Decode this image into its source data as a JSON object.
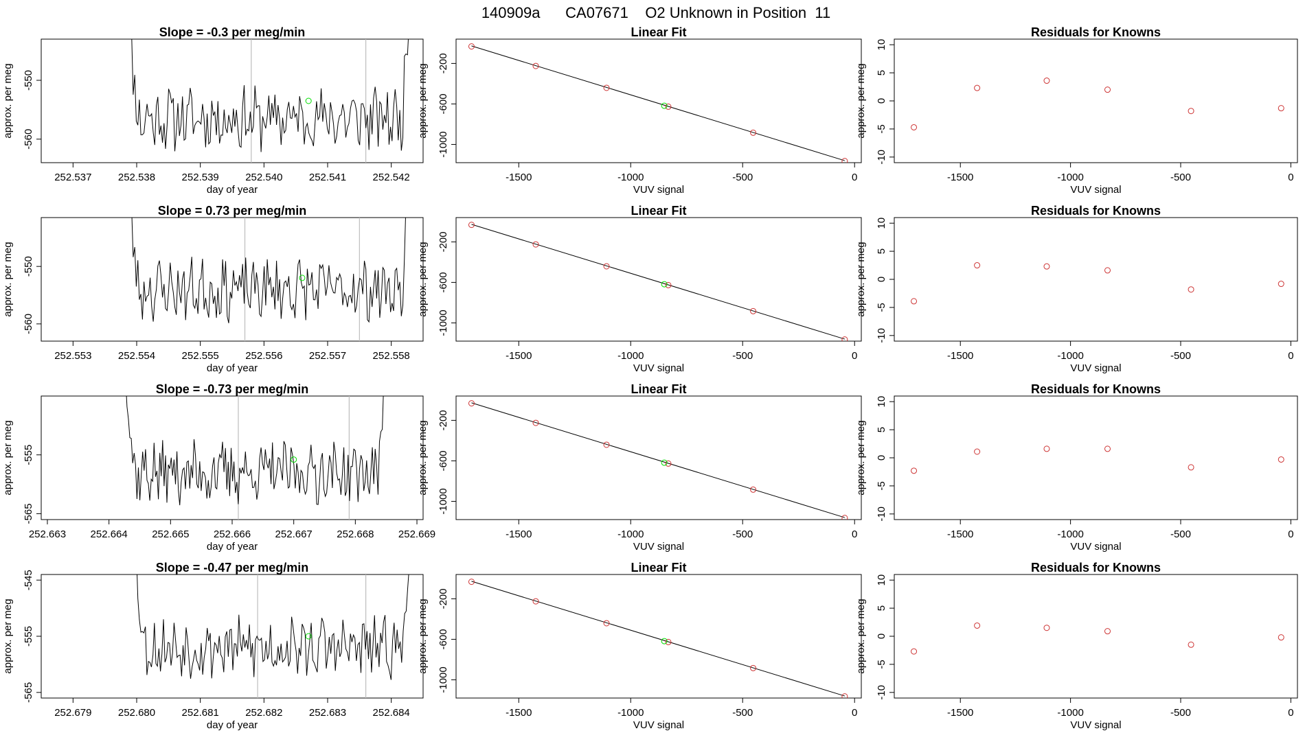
{
  "page_title": "140909a      CA07671    O2 Unknown in Position  11",
  "colors": {
    "trace": "#000000",
    "known_point": "#cd3333",
    "unknown_point": "#00dd00",
    "guide_line": "#bdbdbd",
    "axis": "#000000"
  },
  "chart_data": [
    {
      "type": "line",
      "panel": "time-series-1",
      "title": "Slope =  -0.3  per meg/min",
      "xlabel": "day of year",
      "ylabel": "approx. per meg",
      "xlim": [
        252.5365,
        252.5425
      ],
      "ylim": [
        -564,
        -543
      ],
      "xticks": [
        "252.537",
        "252.538",
        "252.539",
        "252.540",
        "252.541",
        "252.542"
      ],
      "yticks": [
        "-550",
        "-560"
      ],
      "xstart": 252.5378,
      "xend": 252.5424,
      "baseline": -556.5,
      "seed": 11,
      "vlines": [
        252.5398,
        252.5416
      ],
      "unknown_point": {
        "x": 252.5407,
        "y": -553.5
      }
    },
    {
      "type": "scatter",
      "panel": "linear-fit-1",
      "title": "Linear Fit",
      "xlabel": "VUV signal",
      "ylabel": "approx. per meg",
      "xlim": [
        -1780,
        30
      ],
      "ylim": [
        -1180,
        40
      ],
      "xticks": [
        "-1500",
        "-1000",
        "-500",
        "0"
      ],
      "yticks": [
        "-200",
        "-600",
        "-1000"
      ],
      "known_points": [
        {
          "x": -1711,
          "y": -32
        },
        {
          "x": -1424,
          "y": -225
        },
        {
          "x": -1108,
          "y": -441
        },
        {
          "x": -832,
          "y": -627
        },
        {
          "x": -453,
          "y": -884
        },
        {
          "x": -44,
          "y": -1164
        }
      ],
      "unknown_point": {
        "x": -850,
        "y": -618
      },
      "fit_line": [
        {
          "x": -1711,
          "y": -27
        },
        {
          "x": -44,
          "y": -1160
        }
      ]
    },
    {
      "type": "scatter",
      "panel": "residuals-1",
      "title": "Residuals for Knowns",
      "xlabel": "VUV signal",
      "ylabel": "approx. per meg",
      "xlim": [
        -1800,
        30
      ],
      "ylim": [
        -11,
        11
      ],
      "xticks": [
        "-1500",
        "-1000",
        "-500",
        "0"
      ],
      "yticks": [
        "10",
        "5",
        "0",
        "-5",
        "-10"
      ],
      "points": [
        {
          "x": -1711,
          "y": -4.7
        },
        {
          "x": -1424,
          "y": 2.3
        },
        {
          "x": -1108,
          "y": 3.6
        },
        {
          "x": -832,
          "y": 2.0
        },
        {
          "x": -453,
          "y": -1.8
        },
        {
          "x": -44,
          "y": -1.3
        }
      ]
    },
    {
      "type": "line",
      "panel": "time-series-2",
      "title": "Slope =  0.73  per meg/min",
      "xlabel": "day of year",
      "ylabel": "approx. per meg",
      "xlim": [
        252.5525,
        252.5585
      ],
      "ylim": [
        -563,
        -541.5
      ],
      "xticks": [
        "252.553",
        "252.554",
        "252.555",
        "252.556",
        "252.557",
        "252.558"
      ],
      "yticks": [
        "-550",
        "-560"
      ],
      "xstart": 252.5538,
      "xend": 252.5584,
      "baseline": -554,
      "seed": 23,
      "vlines": [
        252.5557,
        252.5575
      ],
      "unknown_point": {
        "x": 252.5566,
        "y": -552
      }
    },
    {
      "type": "scatter",
      "panel": "linear-fit-2",
      "title": "Linear Fit",
      "xlabel": "VUV signal",
      "ylabel": "approx. per meg",
      "xlim": [
        -1780,
        30
      ],
      "ylim": [
        -1180,
        40
      ],
      "xticks": [
        "-1500",
        "-1000",
        "-500",
        "0"
      ],
      "yticks": [
        "-200",
        "-600",
        "-1000"
      ],
      "known_points": [
        {
          "x": -1711,
          "y": -32
        },
        {
          "x": -1424,
          "y": -225
        },
        {
          "x": -1108,
          "y": -441
        },
        {
          "x": -832,
          "y": -627
        },
        {
          "x": -453,
          "y": -884
        },
        {
          "x": -44,
          "y": -1164
        }
      ],
      "unknown_point": {
        "x": -850,
        "y": -618
      },
      "fit_line": [
        {
          "x": -1711,
          "y": -27
        },
        {
          "x": -44,
          "y": -1160
        }
      ]
    },
    {
      "type": "scatter",
      "panel": "residuals-2",
      "title": "Residuals for Knowns",
      "xlabel": "VUV signal",
      "ylabel": "approx. per meg",
      "xlim": [
        -1800,
        30
      ],
      "ylim": [
        -11,
        11
      ],
      "xticks": [
        "-1500",
        "-1000",
        "-500",
        "0"
      ],
      "yticks": [
        "10",
        "5",
        "0",
        "-5",
        "-10"
      ],
      "points": [
        {
          "x": -1711,
          "y": -3.9
        },
        {
          "x": -1424,
          "y": 2.5
        },
        {
          "x": -1108,
          "y": 2.3
        },
        {
          "x": -832,
          "y": 1.6
        },
        {
          "x": -453,
          "y": -1.8
        },
        {
          "x": -44,
          "y": -0.8
        }
      ]
    },
    {
      "type": "line",
      "panel": "time-series-3",
      "title": "Slope =  -0.73  per meg/min",
      "xlabel": "day of year",
      "ylabel": "approx. per meg",
      "xlim": [
        252.6629,
        252.6691
      ],
      "ylim": [
        -566,
        -545
      ],
      "xticks": [
        "252.663",
        "252.664",
        "252.665",
        "252.666",
        "252.667",
        "252.668",
        "252.669"
      ],
      "yticks": [
        "-555",
        "-565"
      ],
      "xstart": 252.6642,
      "xend": 252.6686,
      "baseline": -558,
      "seed": 37,
      "vlines": [
        252.6661,
        252.6679
      ],
      "unknown_point": {
        "x": 252.667,
        "y": -555.8
      }
    },
    {
      "type": "scatter",
      "panel": "linear-fit-3",
      "title": "Linear Fit",
      "xlabel": "VUV signal",
      "ylabel": "approx. per meg",
      "xlim": [
        -1780,
        30
      ],
      "ylim": [
        -1180,
        40
      ],
      "xticks": [
        "-1500",
        "-1000",
        "-500",
        "0"
      ],
      "yticks": [
        "-200",
        "-600",
        "-1000"
      ],
      "known_points": [
        {
          "x": -1711,
          "y": -32
        },
        {
          "x": -1424,
          "y": -225
        },
        {
          "x": -1108,
          "y": -441
        },
        {
          "x": -832,
          "y": -627
        },
        {
          "x": -453,
          "y": -884
        },
        {
          "x": -44,
          "y": -1164
        }
      ],
      "unknown_point": {
        "x": -850,
        "y": -618
      },
      "fit_line": [
        {
          "x": -1711,
          "y": -27
        },
        {
          "x": -44,
          "y": -1160
        }
      ]
    },
    {
      "type": "scatter",
      "panel": "residuals-3",
      "title": "Residuals for Knowns",
      "xlabel": "VUV signal",
      "ylabel": "approx. per meg",
      "xlim": [
        -1800,
        30
      ],
      "ylim": [
        -11,
        11
      ],
      "xticks": [
        "-1500",
        "-1000",
        "-500",
        "0"
      ],
      "yticks": [
        "10",
        "5",
        "0",
        "-5",
        "-10"
      ],
      "points": [
        {
          "x": -1711,
          "y": -2.3
        },
        {
          "x": -1424,
          "y": 1.1
        },
        {
          "x": -1108,
          "y": 1.6
        },
        {
          "x": -832,
          "y": 1.6
        },
        {
          "x": -453,
          "y": -1.7
        },
        {
          "x": -44,
          "y": -0.3
        }
      ]
    },
    {
      "type": "line",
      "panel": "time-series-4",
      "title": "Slope =  -0.47  per meg/min",
      "xlabel": "day of year",
      "ylabel": "approx. per meg",
      "xlim": [
        252.6785,
        252.6845
      ],
      "ylim": [
        -566,
        -544
      ],
      "xticks": [
        "252.679",
        "252.680",
        "252.681",
        "252.682",
        "252.683",
        "252.684"
      ],
      "yticks": [
        "-545",
        "-555",
        "-565"
      ],
      "xstart": 252.6799,
      "xend": 252.6844,
      "baseline": -557,
      "seed": 53,
      "vlines": [
        252.6819,
        252.6836
      ],
      "unknown_point": {
        "x": 252.6827,
        "y": -555
      }
    },
    {
      "type": "scatter",
      "panel": "linear-fit-4",
      "title": "Linear Fit",
      "xlabel": "VUV signal",
      "ylabel": "approx. per meg",
      "xlim": [
        -1780,
        30
      ],
      "ylim": [
        -1180,
        40
      ],
      "xticks": [
        "-1500",
        "-1000",
        "-500",
        "0"
      ],
      "yticks": [
        "-200",
        "-600",
        "-1000"
      ],
      "known_points": [
        {
          "x": -1711,
          "y": -32
        },
        {
          "x": -1424,
          "y": -225
        },
        {
          "x": -1108,
          "y": -441
        },
        {
          "x": -832,
          "y": -627
        },
        {
          "x": -453,
          "y": -884
        },
        {
          "x": -44,
          "y": -1164
        }
      ],
      "unknown_point": {
        "x": -850,
        "y": -618
      },
      "fit_line": [
        {
          "x": -1711,
          "y": -27
        },
        {
          "x": -44,
          "y": -1160
        }
      ]
    },
    {
      "type": "scatter",
      "panel": "residuals-4",
      "title": "Residuals for Knowns",
      "xlabel": "VUV signal",
      "ylabel": "approx. per meg",
      "xlim": [
        -1800,
        30
      ],
      "ylim": [
        -11,
        11
      ],
      "xticks": [
        "-1500",
        "-1000",
        "-500",
        "0"
      ],
      "yticks": [
        "10",
        "5",
        "0",
        "-5",
        "-10"
      ],
      "points": [
        {
          "x": -1711,
          "y": -2.7
        },
        {
          "x": -1424,
          "y": 1.9
        },
        {
          "x": -1108,
          "y": 1.5
        },
        {
          "x": -832,
          "y": 0.9
        },
        {
          "x": -453,
          "y": -1.5
        },
        {
          "x": -44,
          "y": -0.2
        }
      ]
    }
  ]
}
